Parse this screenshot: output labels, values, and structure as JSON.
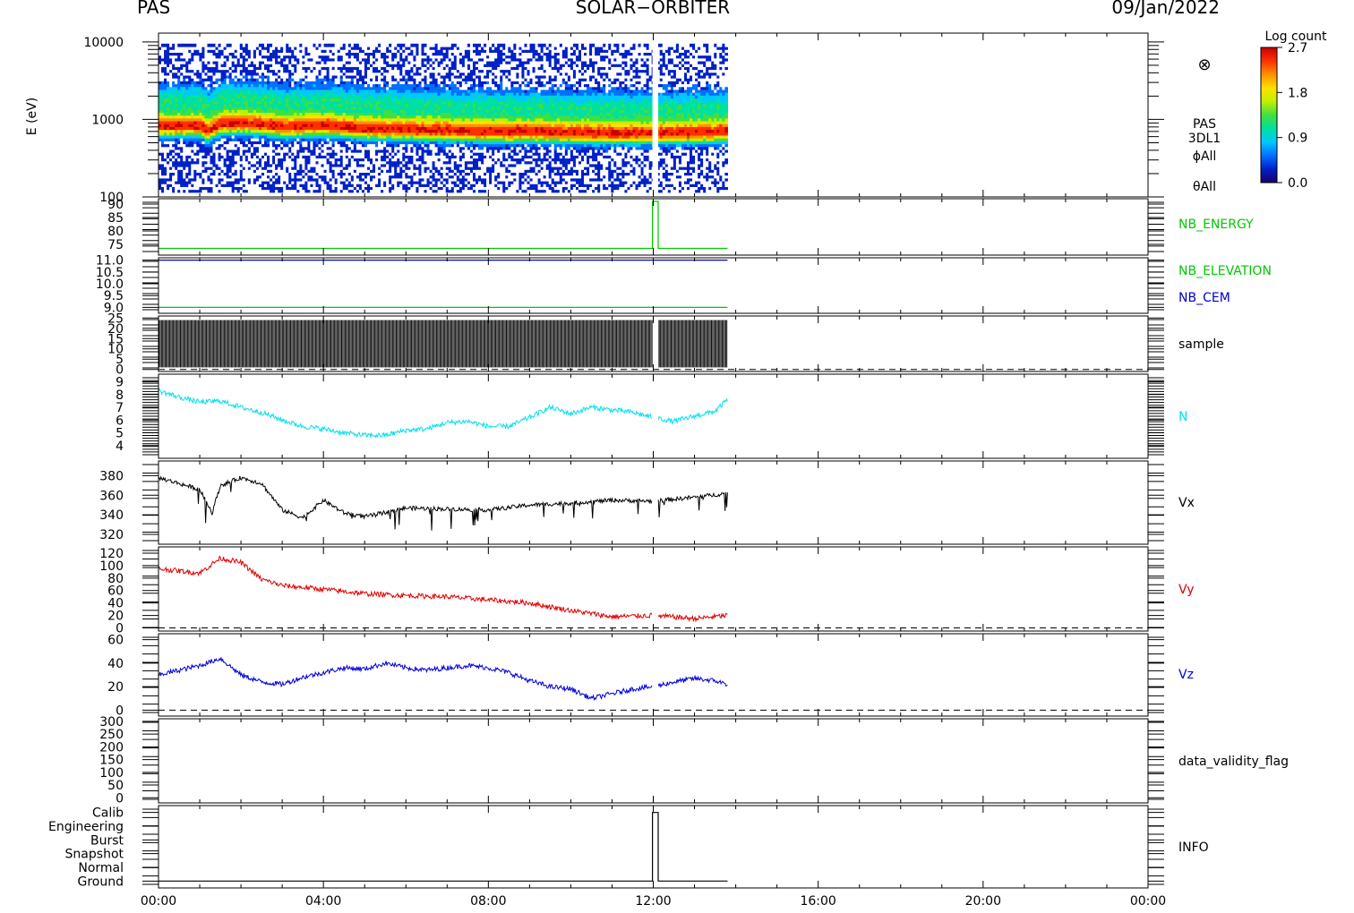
{
  "header": {
    "instrument": "PAS",
    "mission": "SOLAR−ORBITER",
    "date": "09/Jan/2022"
  },
  "time_axis": {
    "tick_labels": [
      "00:00",
      "04:00",
      "08:00",
      "12:00",
      "16:00",
      "20:00",
      "00:00"
    ],
    "tick_hours": [
      0,
      4,
      8,
      12,
      16,
      20,
      24
    ],
    "range_hours": [
      0,
      24
    ],
    "data_end_hours": 13.8,
    "gap_hours": [
      11.98,
      12.12
    ]
  },
  "colorbar": {
    "title": "Log count",
    "tick_labels": [
      "2.7",
      "1.8",
      "0.9",
      "0.0"
    ],
    "tick_values": [
      2.7,
      1.8,
      0.9,
      0.0
    ],
    "range": [
      0.0,
      2.7
    ],
    "colors": [
      "#1a006a",
      "#0020c8",
      "#0070ff",
      "#00c8ff",
      "#00e0a0",
      "#40e040",
      "#c0f000",
      "#ffe000",
      "#ff9000",
      "#ff3000",
      "#c80000"
    ]
  },
  "chart_data": [
    {
      "type": "heatmap",
      "ylabel": "E (eV)",
      "y_scale": "log",
      "ylim": [
        100,
        13000
      ],
      "y_tick_labels": [
        "10000",
        "1000",
        "100"
      ],
      "y_tick_values": [
        10000,
        1000,
        100
      ],
      "side_labels": [
        "PAS",
        "3DL1",
        "ϕAll",
        "θAll"
      ],
      "flow_symbol": "⊗",
      "x_hours": [
        0,
        1,
        1.2,
        1.5,
        2,
        2.5,
        3,
        4,
        5,
        6,
        7,
        8,
        9,
        10,
        11,
        12,
        13,
        13.8
      ],
      "peak_energy_ev": [
        820,
        830,
        700,
        880,
        900,
        860,
        800,
        840,
        760,
        740,
        720,
        700,
        700,
        680,
        660,
        660,
        680,
        700
      ],
      "peak_log_count": 2.7,
      "background_range_ev": [
        115,
        9500
      ]
    },
    {
      "type": "line",
      "ylim": [
        71,
        92
      ],
      "y_tick_labels": [
        "90",
        "85",
        "80",
        "75"
      ],
      "y_tick_values": [
        90,
        85,
        80,
        75
      ],
      "series": [
        {
          "name": "NB_ENERGY",
          "color": "#00c800",
          "x": [
            0,
            11.98,
            11.98,
            12.12,
            12.12,
            13.8
          ],
          "y": [
            73.5,
            73.5,
            91,
            91,
            73.5,
            73.5
          ]
        }
      ]
    },
    {
      "type": "line",
      "ylim": [
        8.75,
        11.1
      ],
      "y_tick_labels": [
        "11.0",
        "10.5",
        "10.0",
        "9.5",
        "9.0"
      ],
      "y_tick_values": [
        11.0,
        10.5,
        10.0,
        9.5,
        9.0
      ],
      "series": [
        {
          "name": "NB_ELEVATION",
          "color": "#00c800",
          "x": [
            0,
            13.8
          ],
          "y": [
            9.0,
            9.0
          ]
        },
        {
          "name": "NB_CEM",
          "color": "#0000c8",
          "x": [
            0,
            13.8
          ],
          "y": [
            11.0,
            11.0
          ]
        }
      ]
    },
    {
      "type": "line",
      "ylim": [
        -1,
        26
      ],
      "y_tick_labels": [
        "25",
        "20",
        "15",
        "10",
        "5",
        "0"
      ],
      "y_tick_values": [
        25,
        20,
        15,
        10,
        5,
        0
      ],
      "zero_line": 0,
      "series": [
        {
          "name": "sample",
          "color": "#000000",
          "low": 1,
          "high": 24,
          "x_range": [
            0,
            13.8
          ]
        }
      ]
    },
    {
      "type": "line",
      "ylim": [
        3.0,
        9.6
      ],
      "y_tick_labels": [
        "9",
        "8",
        "7",
        "6",
        "5",
        "4"
      ],
      "y_tick_values": [
        9,
        8,
        7,
        6,
        5,
        4
      ],
      "series": [
        {
          "name": "N",
          "color": "#00e0f0",
          "x": [
            0,
            0.5,
            1,
            1.5,
            2,
            2.5,
            3,
            3.5,
            4,
            4.5,
            5,
            5.5,
            6,
            6.5,
            7,
            7.5,
            8,
            8.5,
            9,
            9.5,
            10,
            10.5,
            11,
            11.5,
            12,
            12.5,
            13,
            13.5,
            13.8
          ],
          "y": [
            8.3,
            7.8,
            7.4,
            7.5,
            7.0,
            6.6,
            6.0,
            5.5,
            5.3,
            5.0,
            4.8,
            4.8,
            5.2,
            5.3,
            5.8,
            5.9,
            5.5,
            5.5,
            6.2,
            7.0,
            6.5,
            7.0,
            6.8,
            6.6,
            6.2,
            5.9,
            6.3,
            6.7,
            7.6
          ]
        }
      ]
    },
    {
      "type": "line",
      "ylim": [
        310,
        395
      ],
      "y_tick_labels": [
        "380",
        "360",
        "340",
        "320"
      ],
      "y_tick_values": [
        380,
        360,
        340,
        320
      ],
      "series": [
        {
          "name": "Vx",
          "color": "#000000",
          "x": [
            0,
            0.5,
            1,
            1.3,
            1.5,
            2,
            2.5,
            3,
            3.5,
            4,
            4.5,
            5,
            6,
            7,
            8,
            9,
            10,
            11,
            12,
            13,
            13.8
          ],
          "y": [
            378,
            372,
            366,
            342,
            370,
            378,
            372,
            345,
            337,
            355,
            342,
            338,
            347,
            346,
            345,
            350,
            352,
            355,
            354,
            358,
            362
          ]
        }
      ]
    },
    {
      "type": "line",
      "ylim": [
        -5,
        130
      ],
      "y_tick_labels": [
        "120",
        "100",
        "80",
        "60",
        "40",
        "20",
        "0"
      ],
      "y_tick_values": [
        120,
        100,
        80,
        60,
        40,
        20,
        0
      ],
      "zero_line": 0,
      "series": [
        {
          "name": "Vy",
          "color": "#e00000",
          "x": [
            0,
            1,
            1.5,
            2,
            2.5,
            3,
            4,
            5,
            6,
            7,
            8,
            9,
            10,
            11,
            12,
            13,
            13.8
          ],
          "y": [
            95,
            88,
            112,
            105,
            78,
            68,
            62,
            55,
            52,
            50,
            45,
            40,
            28,
            18,
            20,
            15,
            20
          ]
        }
      ]
    },
    {
      "type": "line",
      "ylim": [
        -5,
        65
      ],
      "y_tick_labels": [
        "60",
        "40",
        "20",
        "0"
      ],
      "y_tick_values": [
        60,
        40,
        20,
        0
      ],
      "zero_line": 0,
      "series": [
        {
          "name": "Vz",
          "color": "#0000d8",
          "x": [
            0,
            0.5,
            1,
            1.5,
            2,
            2.5,
            3,
            3.5,
            4,
            4.5,
            5,
            5.5,
            6,
            6.5,
            7,
            7.5,
            8,
            8.5,
            9,
            9.5,
            10,
            10.5,
            11,
            11.5,
            12,
            12.5,
            13,
            13.5,
            13.8
          ],
          "y": [
            30,
            34,
            38,
            44,
            30,
            24,
            22,
            28,
            32,
            36,
            35,
            40,
            36,
            34,
            36,
            38,
            36,
            32,
            25,
            20,
            18,
            10,
            14,
            18,
            20,
            24,
            27,
            25,
            22
          ]
        }
      ]
    },
    {
      "type": "line",
      "ylim": [
        -20,
        310
      ],
      "y_tick_labels": [
        "300",
        "250",
        "200",
        "150",
        "100",
        "50",
        "0"
      ],
      "y_tick_values": [
        300,
        250,
        200,
        150,
        100,
        50,
        0
      ],
      "series": [
        {
          "name": "data_validity_flag",
          "color": "#000000",
          "x": [],
          "y": []
        }
      ]
    },
    {
      "type": "line",
      "ylim": [
        -0.5,
        5.5
      ],
      "y_tick_labels": [
        "Calib",
        "Engineering",
        "Burst",
        "Snapshot",
        "Normal",
        "Ground"
      ],
      "y_tick_values": [
        5,
        4,
        3,
        2,
        1,
        0
      ],
      "series": [
        {
          "name": "INFO",
          "color": "#000000",
          "x": [
            0,
            11.98,
            11.98,
            12.12,
            12.12,
            13.8
          ],
          "y": [
            0,
            0,
            5,
            5,
            0,
            0
          ]
        }
      ]
    }
  ]
}
